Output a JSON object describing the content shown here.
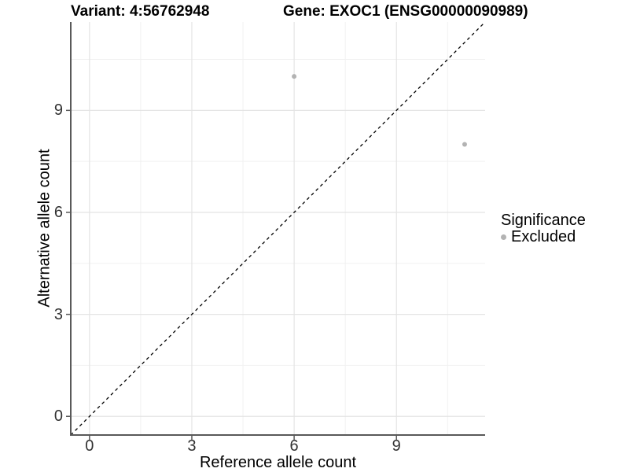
{
  "chart_data": {
    "type": "scatter",
    "title_left": "Variant: 4:56762948",
    "title_right": "Gene: EXOC1 (ENSG00000090989)",
    "xlabel": "Reference allele count",
    "ylabel": "Alternative allele count",
    "xlim": [
      -0.55,
      11.6
    ],
    "ylim": [
      -0.55,
      11.6
    ],
    "x_ticks": [
      0,
      3,
      6,
      9
    ],
    "y_ticks": [
      0,
      3,
      6,
      9
    ],
    "x_minor_ticks": [
      1.5,
      4.5,
      7.5,
      10.5
    ],
    "y_minor_ticks": [
      1.5,
      4.5,
      7.5,
      10.5
    ],
    "grid": true,
    "reference_line": {
      "type": "identity",
      "style": "dashed",
      "color": "#000000"
    },
    "series": [
      {
        "name": "Excluded",
        "color": "#b3b3b3",
        "points": [
          {
            "x": 6,
            "y": 10
          },
          {
            "x": 11,
            "y": 8
          }
        ]
      }
    ],
    "legend": {
      "title": "Significance",
      "position": "right",
      "entries": [
        {
          "label": "Excluded",
          "color": "#b3b3b3"
        }
      ]
    }
  },
  "colors": {
    "grid_major": "#e4e4e4",
    "grid_minor": "#f1f1f1",
    "axis_line": "#595959",
    "tick_mark": "#595959",
    "tick_text": "#333333",
    "background": "#ffffff"
  }
}
